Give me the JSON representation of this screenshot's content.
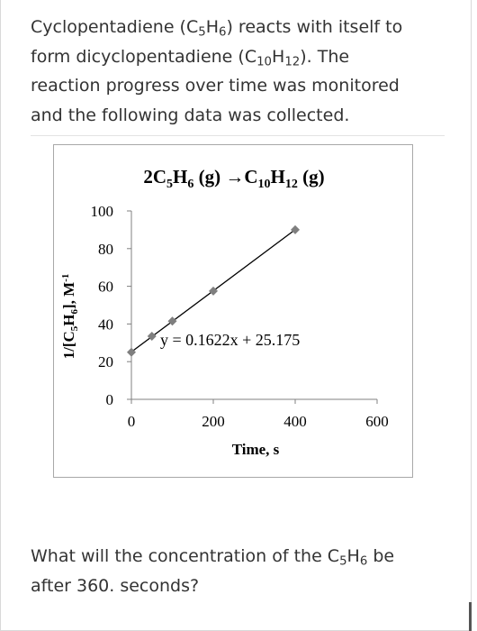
{
  "intro": {
    "part1": "Cyclopentadiene (C",
    "sub1": "5",
    "part2": "H",
    "sub2": "6",
    "part3": ") reacts with itself to form dicyclopentadiene (C",
    "sub3": "10",
    "part4": "H",
    "sub4": "12",
    "part5": "). The reaction progress over time was monitored and the following data was collected."
  },
  "chart_data": {
    "type": "scatter",
    "title": {
      "pre": "2C",
      "sub_a": "5",
      "mid_a": "H",
      "sub_b": "6",
      "mid_b": " (g) →C",
      "sub_c": "10",
      "mid_c": "H",
      "sub_d": "12",
      "post": " (g)"
    },
    "xlabel": "Time, s",
    "ylabel": {
      "pre": "1/[C",
      "sub_a": "5",
      "mid": "H",
      "sub_b": "6",
      "post": "], M",
      "sup": "-1"
    },
    "xlim": [
      0,
      600
    ],
    "ylim": [
      0,
      100
    ],
    "x_ticks": [
      0,
      200,
      400,
      600
    ],
    "y_ticks": [
      0,
      20,
      40,
      60,
      80,
      100
    ],
    "series": [
      {
        "points": [
          {
            "x": 0,
            "y": 25
          },
          {
            "x": 50,
            "y": 33.5
          },
          {
            "x": 100,
            "y": 41.5
          },
          {
            "x": 200,
            "y": 57.5
          },
          {
            "x": 400,
            "y": 90
          }
        ],
        "color": "#7f7f7f"
      }
    ],
    "trendline": {
      "slope": 0.1622,
      "intercept": 25.175,
      "x_range": [
        0,
        400
      ],
      "equation": "y = 0.1622x + 25.175",
      "color": "#000000"
    },
    "grid": false,
    "legend": "none"
  },
  "question": {
    "part1": "What will the concentration of the C",
    "sub1": "5",
    "part2": "H",
    "sub2": "6",
    "part3": " be after 360. seconds?"
  }
}
